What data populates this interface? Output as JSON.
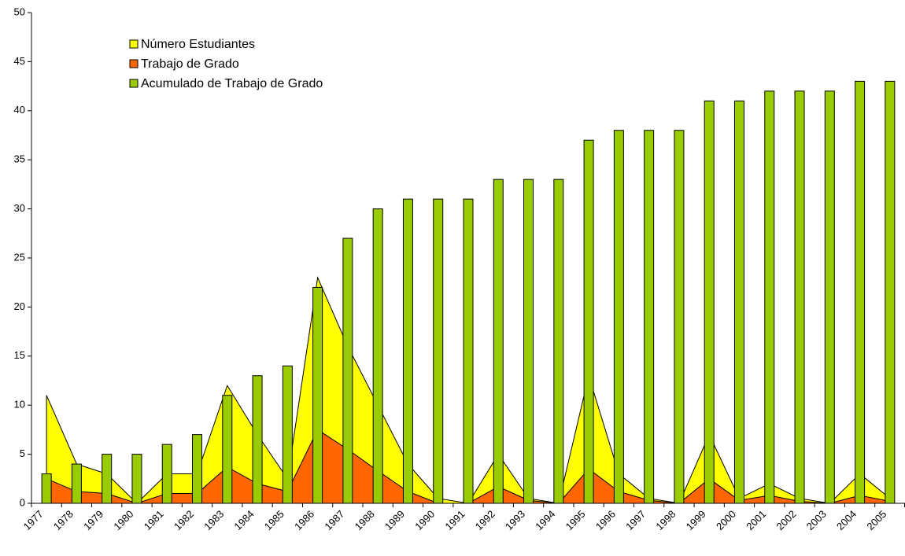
{
  "chart_data": {
    "type": "combo",
    "categories": [
      "1977",
      "1978",
      "1979",
      "1980",
      "1981",
      "1982",
      "1983",
      "1984",
      "1985",
      "1986",
      "1987",
      "1988",
      "1989",
      "1990",
      "1991",
      "1992",
      "1993",
      "1994",
      "1995",
      "1996",
      "1997",
      "1998",
      "1999",
      "2000",
      "2001",
      "2002",
      "2003",
      "2004",
      "2005"
    ],
    "series": [
      {
        "name": "Número Estudiantes",
        "type": "area",
        "color": "#ffff00",
        "values": [
          11,
          4,
          3,
          0,
          3,
          3,
          12,
          7,
          2.5,
          23,
          16,
          10,
          4,
          0.5,
          0,
          5,
          0.5,
          0,
          13,
          3,
          0.5,
          0,
          7,
          0.5,
          2,
          0.5,
          0,
          3,
          0.5
        ]
      },
      {
        "name": "Trabajo de Grado",
        "type": "area",
        "color": "#ff6600",
        "values": [
          2.5,
          1.2,
          1,
          0,
          1,
          1,
          3.7,
          2,
          1.2,
          7.5,
          5.5,
          3.3,
          1.2,
          0,
          0,
          1.7,
          0.3,
          0,
          3.5,
          1.2,
          0.3,
          0,
          2.5,
          0.3,
          0.8,
          0.2,
          0,
          0.8,
          0.2
        ]
      },
      {
        "name": "Acumulado de Trabajo de Grado",
        "type": "bar",
        "color": "#99cc00",
        "values": [
          3,
          4,
          5,
          5,
          6,
          7,
          11,
          13,
          14,
          22,
          27,
          30,
          31,
          31,
          31,
          33,
          33,
          33,
          37,
          38,
          38,
          38,
          41,
          41,
          42,
          42,
          42,
          43,
          43
        ]
      }
    ],
    "ylim": [
      0,
      50
    ],
    "yticks": [
      0,
      5,
      10,
      15,
      20,
      25,
      30,
      35,
      40,
      45,
      50
    ],
    "grid": false,
    "legend": "upper left"
  }
}
